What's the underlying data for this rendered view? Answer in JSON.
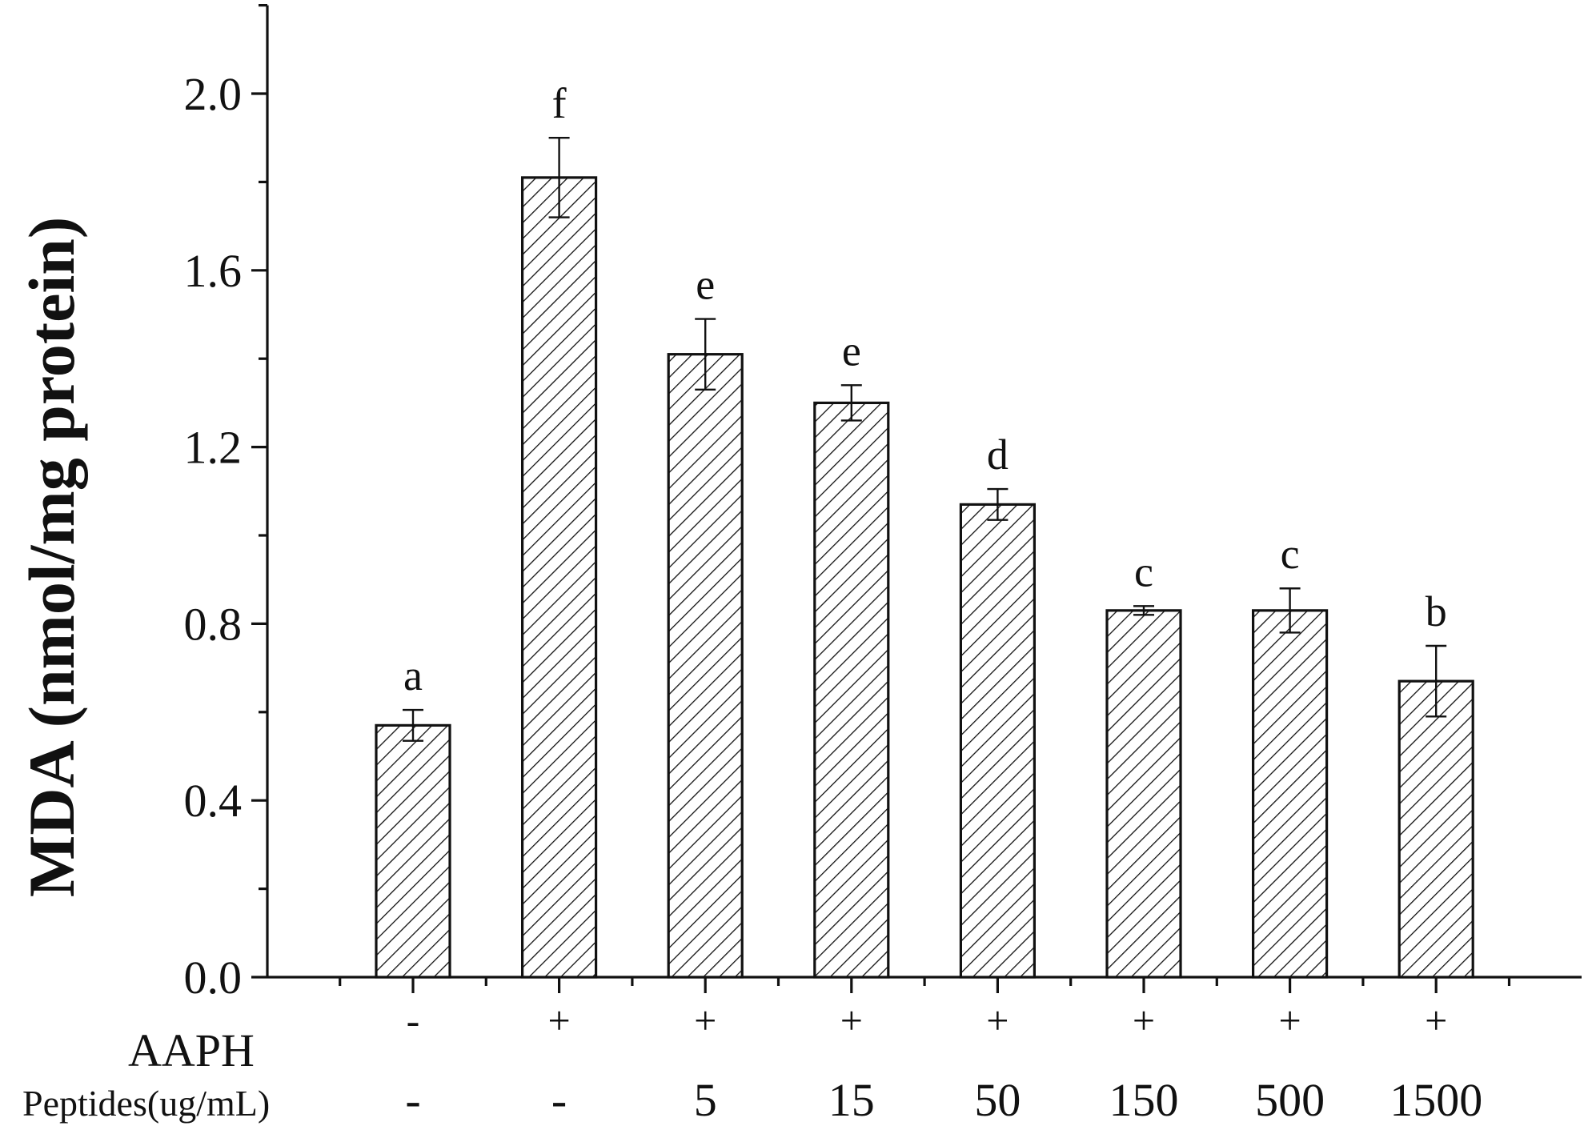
{
  "chart_data": {
    "type": "bar",
    "ylabel": "MDA (nmol/mg protein)",
    "xlabel": "",
    "ylim": [
      0,
      2.2
    ],
    "yticks": [
      0.0,
      0.4,
      0.8,
      1.2,
      1.6,
      2.0
    ],
    "ytick_labels": [
      "0.0",
      "0.4",
      "0.8",
      "1.2",
      "1.6",
      "2.0"
    ],
    "grid": false,
    "pattern": "diagonal-hatch",
    "values": [
      0.57,
      1.81,
      1.41,
      1.3,
      1.07,
      0.83,
      0.83,
      0.67
    ],
    "errors": [
      0.035,
      0.09,
      0.08,
      0.04,
      0.035,
      0.01,
      0.05,
      0.08
    ],
    "significance": [
      "a",
      "f",
      "e",
      "e",
      "d",
      "c",
      "c",
      "b"
    ],
    "rows": [
      {
        "label": "AAPH",
        "values": [
          "-",
          "+",
          "+",
          "+",
          "+",
          "+",
          "+",
          "+"
        ]
      },
      {
        "label": "Peptides(ug/mL)",
        "values": [
          "-",
          "-",
          "5",
          "15",
          "50",
          "150",
          "500",
          "1500"
        ]
      }
    ]
  }
}
